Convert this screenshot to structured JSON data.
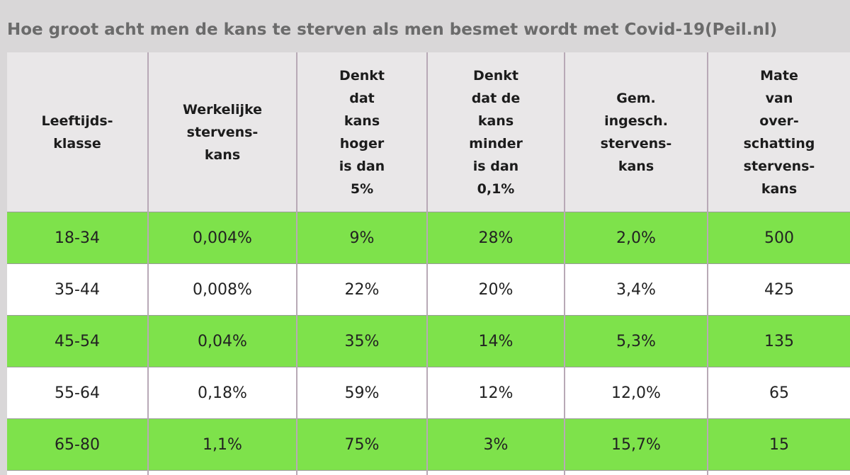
{
  "title": "Hoe groot acht men de kans te sterven als men besmet wordt met Covid-19(Peil.nl)",
  "colors": {
    "background": "#d9d7d8",
    "header_bg": "#e9e7e8",
    "row_green": "#7ee24b",
    "row_white": "#ffffff",
    "title_text": "#6b6b6b"
  },
  "chart_data": {
    "type": "table",
    "title": "Hoe groot acht men de kans te sterven als men besmet wordt met Covid-19(Peil.nl)",
    "columns": [
      "Leeftijds-\nklasse",
      "Werkelijke\nstervens-\nkans",
      "Denkt\ndat\nkans\nhoger\nis dan\n5%",
      "Denkt\ndat de\nkans\nminder\nis dan\n0,1%",
      "Gem.\ningesch.\nstervens-\nkans",
      "Mate\nvan\nover-\nschatting\nstervens-\nkans"
    ],
    "rows": [
      [
        "18-34",
        "0,004%",
        "9%",
        "28%",
        "2,0%",
        "500"
      ],
      [
        "35-44",
        "0,008%",
        "22%",
        "20%",
        "3,4%",
        "425"
      ],
      [
        "45-54",
        "0,04%",
        "35%",
        "14%",
        "5,3%",
        "135"
      ],
      [
        "55-64",
        "0,18%",
        "59%",
        "12%",
        "12,0%",
        "65"
      ],
      [
        "65-80",
        "1,1%",
        "75%",
        "3%",
        "15,7%",
        "15"
      ]
    ]
  }
}
